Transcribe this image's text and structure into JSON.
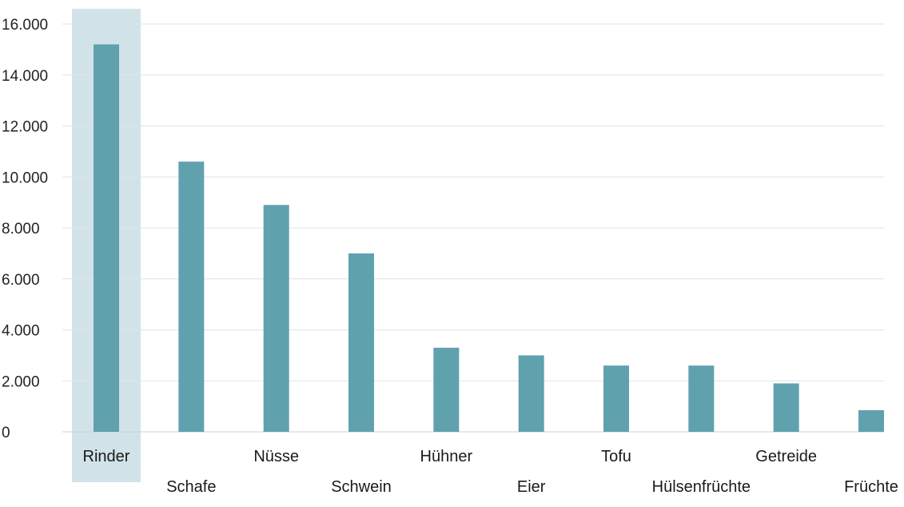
{
  "chart_data": {
    "type": "bar",
    "categories": [
      "Rinder",
      "Schafe",
      "Nüsse",
      "Schwein",
      "Hühner",
      "Eier",
      "Tofu",
      "Hülsenfrüchte",
      "Getreide",
      "Früchte"
    ],
    "values": [
      15200,
      10600,
      8900,
      7000,
      3300,
      3000,
      2600,
      2600,
      1900,
      850
    ],
    "ylim": [
      0,
      16000
    ],
    "yticks": [
      "0",
      "2.000",
      "4.000",
      "6.000",
      "8.000",
      "10.000",
      "12.000",
      "14.000",
      "16.000"
    ],
    "ytick_values": [
      0,
      2000,
      4000,
      6000,
      8000,
      10000,
      12000,
      14000,
      16000
    ],
    "highlighted_category": "Rinder",
    "grid": true,
    "bar_color": "#60a1ae",
    "highlight_color": "#d1e3e8",
    "title": "",
    "xlabel": "",
    "ylabel": ""
  }
}
